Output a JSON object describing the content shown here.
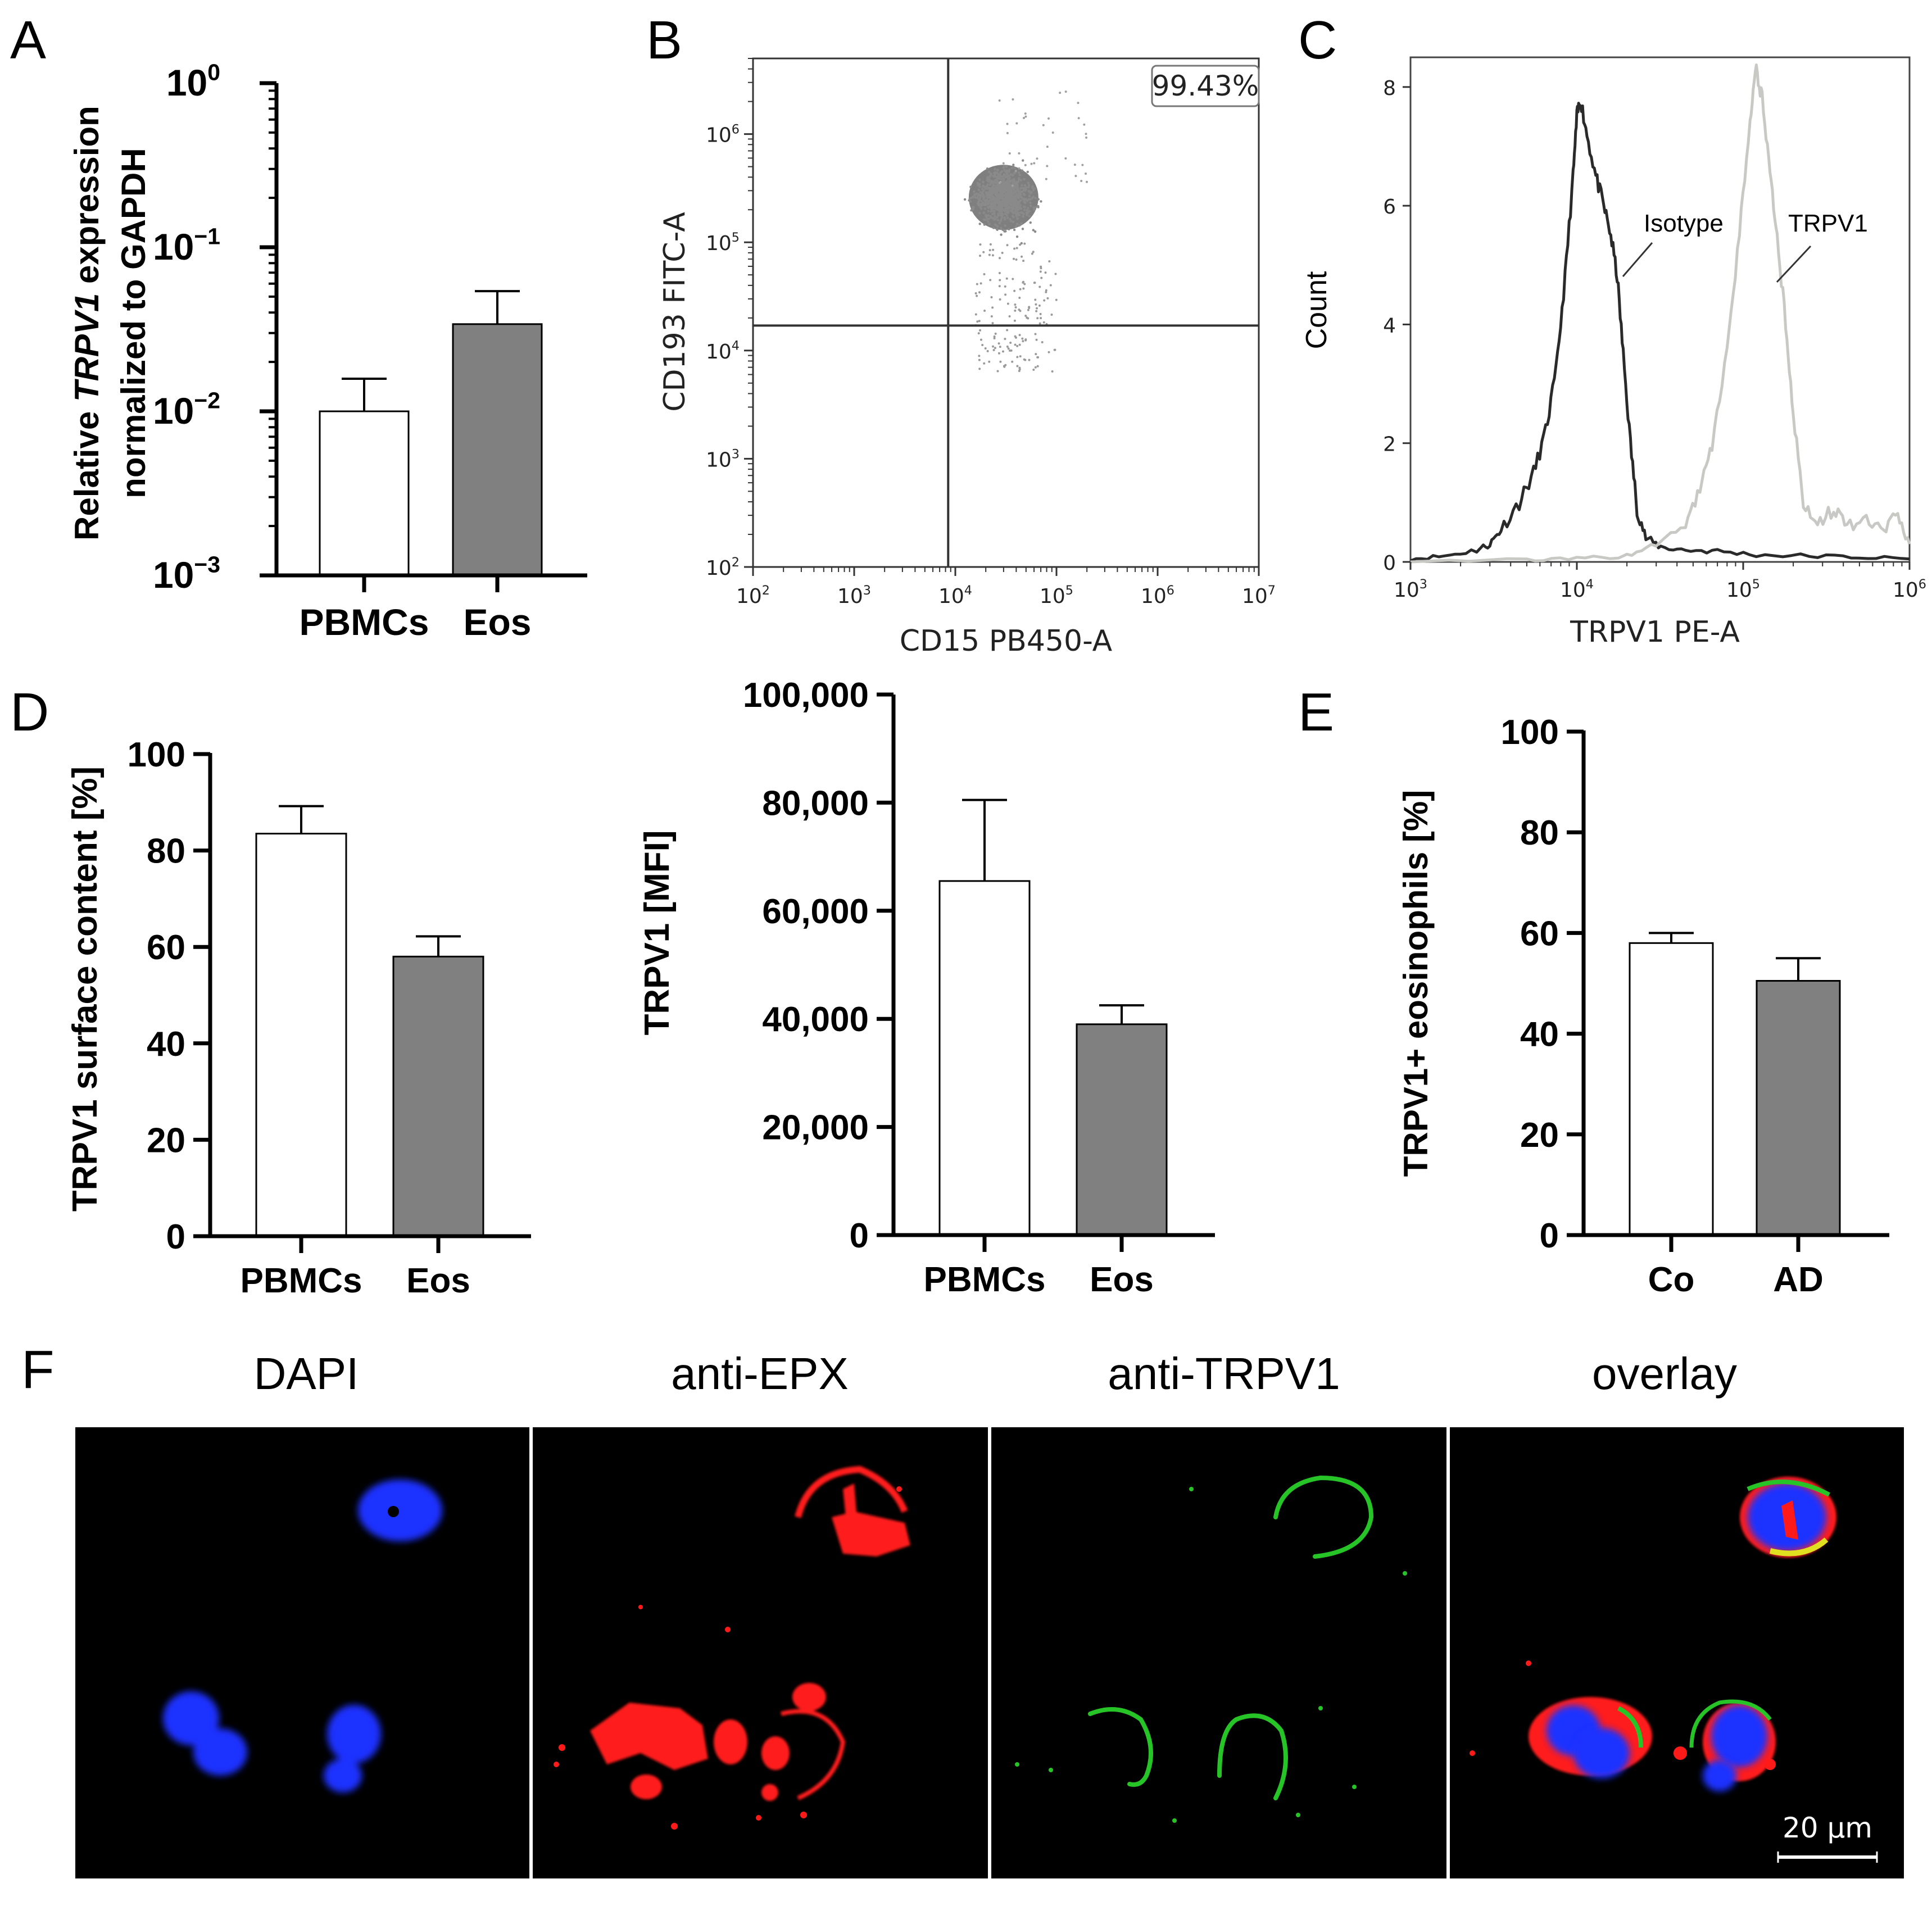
{
  "panel_labels": [
    "A",
    "B",
    "C",
    "D",
    "E",
    "F"
  ],
  "colors": {
    "open_bar": "#ffffff",
    "filled_bar": "#808080",
    "isotype_line": "#2a2a2a",
    "trpv1_line": "#c8c8c4",
    "dapi": "#1a30ff",
    "epx": "#ff1a1a",
    "trpv1_stain": "#27c427"
  },
  "chart_data": [
    {
      "id": "A",
      "type": "bar",
      "categories": [
        "PBMCs",
        "Eos"
      ],
      "values": [
        0.01,
        0.034
      ],
      "errors": [
        0.0058,
        0.02
      ],
      "ylabel_lines": [
        "Relative TRPV1 expression",
        "normalized to GAPDH"
      ],
      "ylabel_italic": "TRPV1",
      "yscale": "log",
      "ylim": [
        0.001,
        1
      ],
      "yticks": [
        {
          "base": "10",
          "exp": "0"
        },
        {
          "base": "10",
          "exp": "−1"
        },
        {
          "base": "10",
          "exp": "−2"
        },
        {
          "base": "10",
          "exp": "−3"
        }
      ]
    },
    {
      "id": "B",
      "type": "scatter",
      "xlabel": "CD15 PB450-A",
      "ylabel": "CD193 FITC-A",
      "xscale": "log",
      "yscale": "log",
      "xlim": [
        100,
        10000000
      ],
      "ylim": [
        100,
        5000000
      ],
      "xticks": [
        {
          "base": "10",
          "exp": "2"
        },
        {
          "base": "10",
          "exp": "3"
        },
        {
          "base": "10",
          "exp": "4"
        },
        {
          "base": "10",
          "exp": "5"
        },
        {
          "base": "10",
          "exp": "6"
        },
        {
          "base": "10",
          "exp": "7"
        }
      ],
      "yticks": [
        {
          "base": "10",
          "exp": "2"
        },
        {
          "base": "10",
          "exp": "3"
        },
        {
          "base": "10",
          "exp": "4"
        },
        {
          "base": "10",
          "exp": "5"
        },
        {
          "base": "10",
          "exp": "6"
        }
      ],
      "gate_x": 8500,
      "gate_y": 17000,
      "annotation": "99.43%",
      "cluster_center": [
        30000,
        260000
      ]
    },
    {
      "id": "C",
      "type": "line",
      "xlabel": "TRPV1 PE-A",
      "ylabel": "Count",
      "xscale": "log",
      "xlim": [
        1000,
        1000000
      ],
      "ylim": [
        0,
        8.5
      ],
      "xticks": [
        {
          "base": "10",
          "exp": "3"
        },
        {
          "base": "10",
          "exp": "4"
        },
        {
          "base": "10",
          "exp": "5"
        },
        {
          "base": "10",
          "exp": "6"
        }
      ],
      "yticks": [
        "0",
        "2",
        "4",
        "6",
        "8"
      ],
      "series": [
        {
          "name": "Isotype",
          "points": [
            [
              1000,
              0.05
            ],
            [
              1600,
              0.1
            ],
            [
              2500,
              0.2
            ],
            [
              3000,
              0.3
            ],
            [
              3500,
              0.55
            ],
            [
              4500,
              1.0
            ],
            [
              5500,
              1.5
            ],
            [
              6500,
              2.2
            ],
            [
              7500,
              3.2
            ],
            [
              8500,
              4.8
            ],
            [
              9500,
              6.5
            ],
            [
              10000,
              7.5
            ],
            [
              10500,
              7.8
            ],
            [
              11500,
              7.2
            ],
            [
              13000,
              6.5
            ],
            [
              14500,
              6.0
            ],
            [
              16000,
              5.5
            ],
            [
              17500,
              4.8
            ],
            [
              19000,
              3.5
            ],
            [
              21000,
              2.0
            ],
            [
              23000,
              0.9
            ],
            [
              26000,
              0.4
            ],
            [
              32000,
              0.25
            ],
            [
              45000,
              0.2
            ],
            [
              70000,
              0.18
            ],
            [
              120000,
              0.12
            ],
            [
              250000,
              0.1
            ],
            [
              500000,
              0.08
            ],
            [
              1000000,
              0.05
            ]
          ]
        },
        {
          "name": "TRPV1",
          "points": [
            [
              1000,
              0.02
            ],
            [
              5000,
              0.03
            ],
            [
              10000,
              0.05
            ],
            [
              20000,
              0.1
            ],
            [
              30000,
              0.3
            ],
            [
              45000,
              0.6
            ],
            [
              55000,
              1.2
            ],
            [
              65000,
              2.0
            ],
            [
              80000,
              3.5
            ],
            [
              95000,
              5.5
            ],
            [
              110000,
              7.5
            ],
            [
              120000,
              8.3
            ],
            [
              130000,
              7.8
            ],
            [
              145000,
              6.5
            ],
            [
              160000,
              5.5
            ],
            [
              180000,
              4.0
            ],
            [
              200000,
              2.5
            ],
            [
              230000,
              1.0
            ],
            [
              280000,
              0.6
            ],
            [
              350000,
              0.9
            ],
            [
              420000,
              0.6
            ],
            [
              550000,
              0.7
            ],
            [
              700000,
              0.5
            ],
            [
              850000,
              0.8
            ],
            [
              1000000,
              0.3
            ]
          ]
        }
      ],
      "labels": [
        "Isotype",
        "TRPV1"
      ]
    },
    {
      "id": "D1",
      "type": "bar",
      "categories": [
        "PBMCs",
        "Eos"
      ],
      "values": [
        83.5,
        58
      ],
      "errors": [
        5.7,
        4.2
      ],
      "ylabel": "TRPV1 surface content [%]",
      "ylim": [
        0,
        100
      ],
      "yticks": [
        "0",
        "20",
        "40",
        "60",
        "80",
        "100"
      ]
    },
    {
      "id": "D2",
      "type": "bar",
      "categories": [
        "PBMCs",
        "Eos"
      ],
      "values": [
        65500,
        39000
      ],
      "errors": [
        15000,
        3500
      ],
      "ylabel": "TRPV1 [MFI]",
      "ylim": [
        0,
        100000
      ],
      "yticks": [
        "0",
        "20,000",
        "40,000",
        "60,000",
        "80,000",
        "100,000"
      ]
    },
    {
      "id": "E",
      "type": "bar",
      "categories": [
        "Co",
        "AD"
      ],
      "values": [
        58,
        50.5
      ],
      "errors": [
        2,
        4.5
      ],
      "ylabel": "TRPV1+ eosinophils [%]",
      "ylim": [
        0,
        100
      ],
      "yticks": [
        "0",
        "20",
        "40",
        "60",
        "80",
        "100"
      ]
    }
  ],
  "microscopy": {
    "titles": [
      "DAPI",
      "anti-EPX",
      "anti-TRPV1",
      "overlay"
    ],
    "scale_bar": "20 µm"
  }
}
